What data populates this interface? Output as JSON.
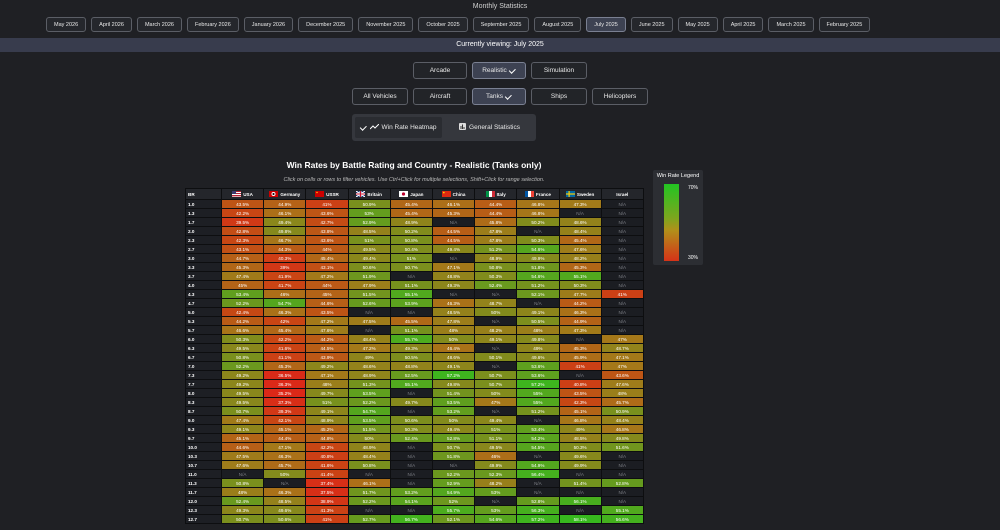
{
  "title": "Monthly Statistics",
  "months": [
    {
      "label": "May 2026",
      "active": false
    },
    {
      "label": "April 2026",
      "active": false
    },
    {
      "label": "March 2026",
      "active": false
    },
    {
      "label": "February 2026",
      "active": false
    },
    {
      "label": "January 2026",
      "active": false
    },
    {
      "label": "December 2025",
      "active": false
    },
    {
      "label": "November 2025",
      "active": false
    },
    {
      "label": "October 2025",
      "active": false
    },
    {
      "label": "September 2025",
      "active": false
    },
    {
      "label": "August 2025",
      "active": false
    },
    {
      "label": "July 2025",
      "active": true
    },
    {
      "label": "June 2025",
      "active": false
    },
    {
      "label": "May 2025",
      "active": false
    },
    {
      "label": "April 2025",
      "active": false
    },
    {
      "label": "March 2025",
      "active": false
    },
    {
      "label": "February 2025",
      "active": false
    }
  ],
  "viewing": "Currently viewing: July 2025",
  "modes": [
    {
      "label": "Arcade",
      "active": false
    },
    {
      "label": "Realistic",
      "active": true
    },
    {
      "label": "Simulation",
      "active": false
    }
  ],
  "vehicles": [
    {
      "label": "All Vehicles",
      "active": false
    },
    {
      "label": "Aircraft",
      "active": false
    },
    {
      "label": "Tanks",
      "active": true
    },
    {
      "label": "Ships",
      "active": false
    },
    {
      "label": "Helicopters",
      "active": false
    }
  ],
  "view_tabs": [
    {
      "label": "Win Rate Heatmap",
      "active": true,
      "icon": "trend-icon"
    },
    {
      "label": "General Statistics",
      "active": false,
      "icon": "bar-chart-icon"
    }
  ],
  "heading": "Win Rates by Battle Rating and Country - Realistic (Tanks only)",
  "hint": "Click on cells or rows to filter vehicles. Use Ctrl+Click for multiple selections, Shift+Click for range selection.",
  "table": {
    "br_header": "BR",
    "countries": [
      {
        "name": "USA",
        "flag": "usa"
      },
      {
        "name": "Germany",
        "flag": "germany"
      },
      {
        "name": "USSR",
        "flag": "ussr"
      },
      {
        "name": "Britain",
        "flag": "britain"
      },
      {
        "name": "Japan",
        "flag": "japan"
      },
      {
        "name": "China",
        "flag": "china"
      },
      {
        "name": "Italy",
        "flag": "italy"
      },
      {
        "name": "France",
        "flag": "france"
      },
      {
        "name": "Sweden",
        "flag": "sweden"
      },
      {
        "name": "Israel",
        "flag": "israel"
      }
    ],
    "rows": [
      {
        "br": "1.0",
        "values": [
          "43.5%",
          "44.9%",
          "41%",
          "50.9%",
          "45.4%",
          "46.1%",
          "44.4%",
          "46.8%",
          "47.3%",
          "N/A"
        ]
      },
      {
        "br": "1.3",
        "values": [
          "42.2%",
          "46.1%",
          "43.6%",
          "53%",
          "45.4%",
          "45.3%",
          "44.4%",
          "46.8%",
          "N/A",
          "N/A"
        ]
      },
      {
        "br": "1.7",
        "values": [
          "39.5%",
          "49.4%",
          "42.7%",
          "52.9%",
          "48.9%",
          "N/A",
          "45.8%",
          "50.2%",
          "48.6%",
          "N/A"
        ]
      },
      {
        "br": "2.0",
        "values": [
          "42.8%",
          "49.8%",
          "43.8%",
          "48.5%",
          "50.2%",
          "44.5%",
          "47.8%",
          "N/A",
          "48.4%",
          "N/A"
        ]
      },
      {
        "br": "2.3",
        "values": [
          "42.3%",
          "46.7%",
          "43.6%",
          "51%",
          "50.8%",
          "44.5%",
          "47.8%",
          "50.3%",
          "45.4%",
          "N/A"
        ]
      },
      {
        "br": "2.7",
        "values": [
          "43.1%",
          "44.3%",
          "44%",
          "49.5%",
          "50.4%",
          "49.4%",
          "51.2%",
          "54.6%",
          "47.6%",
          "N/A"
        ]
      },
      {
        "br": "3.0",
        "values": [
          "44.7%",
          "40.3%",
          "45.4%",
          "49.4%",
          "51%",
          "N/A",
          "48.9%",
          "49.9%",
          "48.2%",
          "N/A"
        ]
      },
      {
        "br": "3.3",
        "values": [
          "45.3%",
          "39%",
          "43.1%",
          "50.6%",
          "50.7%",
          "47.1%",
          "50.8%",
          "51.8%",
          "45.3%",
          "N/A"
        ]
      },
      {
        "br": "3.7",
        "values": [
          "47.4%",
          "41.9%",
          "47.2%",
          "51.9%",
          "N/A",
          "48.8%",
          "50.3%",
          "54.6%",
          "55.1%",
          "N/A"
        ]
      },
      {
        "br": "4.0",
        "values": [
          "45%",
          "41.7%",
          "44%",
          "47.9%",
          "51.1%",
          "49.3%",
          "52.4%",
          "51.2%",
          "50.3%",
          "N/A"
        ]
      },
      {
        "br": "4.3",
        "values": [
          "53.4%",
          "46%",
          "45%",
          "51.5%",
          "55.1%",
          "N/A",
          "N/A",
          "52.1%",
          "47.7%",
          "41%"
        ]
      },
      {
        "br": "4.7",
        "values": [
          "52.2%",
          "54.7%",
          "44.6%",
          "52.6%",
          "53.9%",
          "46.3%",
          "48.7%",
          "N/A",
          "44.2%",
          "N/A"
        ]
      },
      {
        "br": "5.0",
        "values": [
          "42.4%",
          "46.3%",
          "43.5%",
          "N/A",
          "N/A",
          "48.5%",
          "50%",
          "49.1%",
          "46.3%",
          "N/A"
        ]
      },
      {
        "br": "5.3",
        "values": [
          "44.2%",
          "42%",
          "47.2%",
          "47.5%",
          "45.5%",
          "47.8%",
          "N/A",
          "50.5%",
          "44.9%",
          "N/A"
        ]
      },
      {
        "br": "5.7",
        "values": [
          "46.6%",
          "45.4%",
          "47.6%",
          "N/A",
          "51.1%",
          "48%",
          "48.2%",
          "48%",
          "47.3%",
          "N/A"
        ]
      },
      {
        "br": "6.0",
        "values": [
          "50.3%",
          "42.2%",
          "44.2%",
          "48.4%",
          "55.7%",
          "50%",
          "49.1%",
          "49.8%",
          "N/A",
          "47%"
        ]
      },
      {
        "br": "6.3",
        "values": [
          "49.5%",
          "41.6%",
          "44.5%",
          "47.2%",
          "49.3%",
          "46.4%",
          "N/A",
          "49%",
          "45.3%",
          "48.7%"
        ]
      },
      {
        "br": "6.7",
        "values": [
          "50.8%",
          "41.1%",
          "43.9%",
          "49%",
          "50.5%",
          "48.6%",
          "50.1%",
          "49.6%",
          "45.9%",
          "47.1%"
        ]
      },
      {
        "br": "7.0",
        "values": [
          "52.2%",
          "45.3%",
          "49.2%",
          "48.6%",
          "48.8%",
          "49.1%",
          "N/A",
          "53.6%",
          "41%",
          "47%"
        ]
      },
      {
        "br": "7.3",
        "values": [
          "49.2%",
          "36.5%",
          "47.1%",
          "48.9%",
          "52.5%",
          "57.2%",
          "50.7%",
          "53.6%",
          "N/A",
          "43.6%"
        ]
      },
      {
        "br": "7.7",
        "values": [
          "49.2%",
          "36.3%",
          "48%",
          "51.3%",
          "55.1%",
          "49.8%",
          "50.7%",
          "57.2%",
          "40.8%",
          "47.6%"
        ]
      },
      {
        "br": "8.0",
        "values": [
          "49.5%",
          "35.2%",
          "49.7%",
          "53.5%",
          "N/A",
          "51.4%",
          "50%",
          "55%",
          "43.5%",
          "48%"
        ]
      },
      {
        "br": "8.3",
        "values": [
          "49.5%",
          "37.3%",
          "51%",
          "52.2%",
          "49.7%",
          "53.5%",
          "47%",
          "55%",
          "42.3%",
          "45.7%"
        ]
      },
      {
        "br": "8.7",
        "values": [
          "50.7%",
          "39.3%",
          "49.1%",
          "54.7%",
          "N/A",
          "53.2%",
          "N/A",
          "51.2%",
          "45.1%",
          "50.9%"
        ]
      },
      {
        "br": "9.0",
        "values": [
          "47.4%",
          "42.1%",
          "48.9%",
          "53.5%",
          "50.6%",
          "50%",
          "49.4%",
          "N/A",
          "46.8%",
          "48.4%"
        ]
      },
      {
        "br": "9.3",
        "values": [
          "49.1%",
          "45.1%",
          "45.2%",
          "51.5%",
          "50.3%",
          "49.4%",
          "51%",
          "53.4%",
          "49%",
          "46.8%"
        ]
      },
      {
        "br": "9.7",
        "values": [
          "45.1%",
          "44.4%",
          "44.8%",
          "50%",
          "52.4%",
          "52.8%",
          "51.1%",
          "54.2%",
          "48.5%",
          "49.8%"
        ]
      },
      {
        "br": "10.0",
        "values": [
          "44.6%",
          "47.1%",
          "42.2%",
          "48.9%",
          "N/A",
          "50.7%",
          "49.5%",
          "54.5%",
          "50.3%",
          "51.6%"
        ]
      },
      {
        "br": "10.3",
        "values": [
          "47.5%",
          "46.3%",
          "40.8%",
          "48.4%",
          "N/A",
          "51.8%",
          "46%",
          "N/A",
          "49.6%",
          "N/A"
        ]
      },
      {
        "br": "10.7",
        "values": [
          "47.6%",
          "45.7%",
          "41.6%",
          "50.8%",
          "N/A",
          "N/A",
          "49.9%",
          "54.9%",
          "49.9%",
          "N/A"
        ]
      },
      {
        "br": "11.0",
        "values": [
          "N/A",
          "50%",
          "41.4%",
          "N/A",
          "N/A",
          "52.2%",
          "52.3%",
          "56.4%",
          "N/A",
          "N/A"
        ]
      },
      {
        "br": "11.3",
        "values": [
          "50.8%",
          "N/A",
          "37.4%",
          "46.1%",
          "N/A",
          "52.9%",
          "48.2%",
          "N/A",
          "51.4%",
          "52.8%"
        ]
      },
      {
        "br": "11.7",
        "values": [
          "48%",
          "46.3%",
          "37.5%",
          "51.7%",
          "53.2%",
          "54.9%",
          "53%",
          "N/A",
          "N/A",
          "N/A"
        ]
      },
      {
        "br": "12.0",
        "values": [
          "52.4%",
          "48.5%",
          "38.9%",
          "52.2%",
          "54.1%",
          "52%",
          "N/A",
          "52.8%",
          "56.1%",
          "N/A"
        ]
      },
      {
        "br": "12.3",
        "values": [
          "49.3%",
          "49.6%",
          "41.3%",
          "N/A",
          "N/A",
          "55.7%",
          "53%",
          "56.3%",
          "N/A",
          "55.1%"
        ]
      },
      {
        "br": "12.7",
        "values": [
          "50.7%",
          "50.6%",
          "41%",
          "52.7%",
          "56.7%",
          "52.1%",
          "54.6%",
          "57.2%",
          "58.1%",
          "56.6%"
        ]
      }
    ]
  },
  "legend": {
    "title": "Win Rate Legend",
    "high": "70%",
    "low": "30%"
  }
}
